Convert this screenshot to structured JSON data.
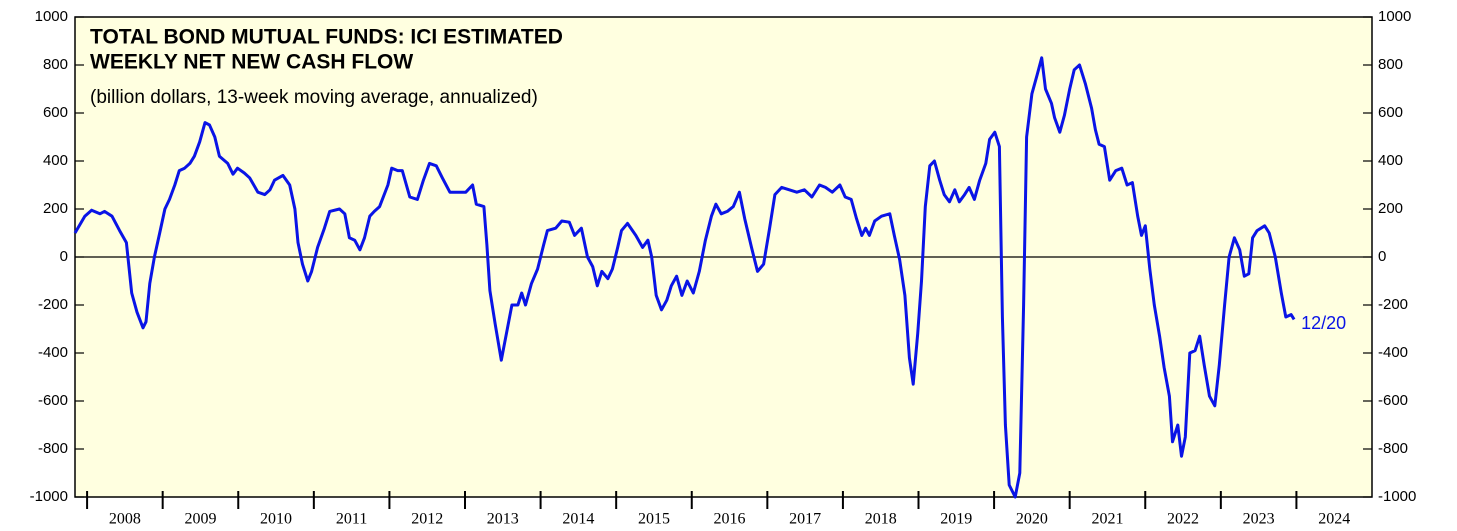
{
  "chart_data": {
    "type": "line",
    "title": [
      "TOTAL BOND MUTUAL FUNDS: ICI ESTIMATED",
      "WEEKLY NET NEW CASH FLOW"
    ],
    "subtitle": "(billion dollars, 13-week moving average, annualized)",
    "annotation": "12/20",
    "color": "#0a14e6",
    "xlim": [
      2007.84,
      2025.0
    ],
    "xticks": [
      2008,
      2009,
      2010,
      2011,
      2012,
      2013,
      2014,
      2015,
      2016,
      2017,
      2018,
      2019,
      2020,
      2021,
      2022,
      2023,
      2024
    ],
    "ylim": [
      -1000,
      1000
    ],
    "yticks": [
      -1000,
      -800,
      -600,
      -400,
      -200,
      0,
      200,
      400,
      600,
      800,
      1000
    ],
    "x": [
      2007.84,
      2007.97,
      2008.06,
      2008.17,
      2008.23,
      2008.33,
      2008.43,
      2008.52,
      2008.59,
      2008.66,
      2008.74,
      2008.78,
      2008.83,
      2008.89,
      2008.96,
      2009.03,
      2009.09,
      2009.16,
      2009.22,
      2009.29,
      2009.36,
      2009.42,
      2009.49,
      2009.56,
      2009.62,
      2009.69,
      2009.75,
      2009.86,
      2009.93,
      2009.99,
      2010.08,
      2010.15,
      2010.26,
      2010.35,
      2010.42,
      2010.48,
      2010.59,
      2010.68,
      2010.75,
      2010.79,
      2010.85,
      2010.92,
      2010.97,
      2011.05,
      2011.14,
      2011.21,
      2011.34,
      2011.41,
      2011.47,
      2011.54,
      2011.61,
      2011.67,
      2011.74,
      2011.8,
      2011.87,
      2011.98,
      2012.03,
      2012.11,
      2012.17,
      2012.27,
      2012.37,
      2012.45,
      2012.53,
      2012.62,
      2012.7,
      2012.8,
      2012.9,
      2013.01,
      2013.1,
      2013.15,
      2013.25,
      2013.29,
      2013.33,
      2013.4,
      2013.48,
      2013.56,
      2013.62,
      2013.7,
      2013.75,
      2013.8,
      2013.88,
      2013.96,
      2014.04,
      2014.09,
      2014.2,
      2014.28,
      2014.38,
      2014.45,
      2014.54,
      2014.62,
      2014.69,
      2014.75,
      2014.81,
      2014.89,
      2014.95,
      2015.02,
      2015.07,
      2015.15,
      2015.26,
      2015.35,
      2015.42,
      2015.47,
      2015.53,
      2015.6,
      2015.67,
      2015.73,
      2015.8,
      2015.87,
      2015.94,
      2016.02,
      2016.1,
      2016.18,
      2016.26,
      2016.32,
      2016.39,
      2016.47,
      2016.55,
      2016.63,
      2016.7,
      2016.79,
      2016.87,
      2016.95,
      2017.03,
      2017.1,
      2017.19,
      2017.29,
      2017.39,
      2017.49,
      2017.59,
      2017.69,
      2017.77,
      2017.86,
      2017.96,
      2018.03,
      2018.11,
      2018.18,
      2018.25,
      2018.3,
      2018.35,
      2018.42,
      2018.51,
      2018.62,
      2018.68,
      2018.75,
      2018.82,
      2018.88,
      2018.93,
      2018.99,
      2019.04,
      2019.09,
      2019.15,
      2019.21,
      2019.28,
      2019.34,
      2019.41,
      2019.48,
      2019.54,
      2019.61,
      2019.67,
      2019.74,
      2019.81,
      2019.89,
      2019.94,
      2020.01,
      2020.07,
      2020.11,
      2020.15,
      2020.2,
      2020.28,
      2020.34,
      2020.39,
      2020.43,
      2020.5,
      2020.57,
      2020.63,
      2020.68,
      2020.76,
      2020.8,
      2020.87,
      2020.93,
      2021.0,
      2021.06,
      2021.13,
      2021.21,
      2021.29,
      2021.34,
      2021.39,
      2021.46,
      2021.53,
      2021.61,
      2021.69,
      2021.76,
      2021.83,
      2021.9,
      2021.95,
      2022.0,
      2022.06,
      2022.12,
      2022.19,
      2022.25,
      2022.32,
      2022.36,
      2022.43,
      2022.48,
      2022.53,
      2022.59,
      2022.66,
      2022.72,
      2022.78,
      2022.85,
      2022.92,
      2022.98,
      2023.05,
      2023.11,
      2023.18,
      2023.25,
      2023.31,
      2023.37,
      2023.42,
      2023.48,
      2023.58,
      2023.64,
      2023.72,
      2023.8,
      2023.86,
      2023.93,
      2023.97
    ],
    "values": [
      100,
      170,
      195,
      180,
      190,
      170,
      110,
      60,
      -150,
      -230,
      -295,
      -270,
      -110,
      0,
      100,
      200,
      240,
      300,
      360,
      370,
      390,
      420,
      480,
      560,
      550,
      500,
      420,
      390,
      345,
      370,
      350,
      330,
      270,
      260,
      280,
      320,
      340,
      300,
      200,
      60,
      -30,
      -100,
      -60,
      40,
      120,
      190,
      200,
      180,
      80,
      70,
      30,
      80,
      170,
      190,
      210,
      300,
      370,
      360,
      360,
      250,
      240,
      320,
      390,
      380,
      330,
      270,
      270,
      270,
      300,
      220,
      210,
      50,
      -140,
      -280,
      -430,
      -300,
      -200,
      -200,
      -150,
      -200,
      -110,
      -50,
      50,
      110,
      120,
      150,
      145,
      90,
      120,
      0,
      -40,
      -120,
      -60,
      -90,
      -50,
      40,
      110,
      140,
      90,
      40,
      70,
      0,
      -160,
      -220,
      -180,
      -120,
      -80,
      -160,
      -100,
      -150,
      -60,
      70,
      170,
      220,
      180,
      190,
      210,
      270,
      160,
      40,
      -60,
      -30,
      120,
      260,
      290,
      280,
      270,
      280,
      250,
      300,
      290,
      270,
      300,
      250,
      240,
      160,
      90,
      120,
      90,
      150,
      170,
      180,
      90,
      -10,
      -160,
      -420,
      -530,
      -320,
      -100,
      210,
      380,
      400,
      320,
      260,
      230,
      280,
      230,
      260,
      290,
      240,
      320,
      390,
      490,
      520,
      460,
      -250,
      -700,
      -950,
      -1000,
      -900,
      -200,
      500,
      680,
      760,
      830,
      700,
      640,
      580,
      520,
      590,
      700,
      780,
      800,
      720,
      620,
      530,
      470,
      460,
      320,
      360,
      370,
      300,
      310,
      170,
      90,
      130,
      -50,
      -200,
      -330,
      -460,
      -580,
      -770,
      -700,
      -830,
      -750,
      -400,
      -390,
      -330,
      -450,
      -580,
      -620,
      -450,
      -200,
      0,
      80,
      30,
      -80,
      -70,
      80,
      110,
      130,
      100,
      0,
      -150,
      -250,
      -240,
      -260
    ]
  }
}
